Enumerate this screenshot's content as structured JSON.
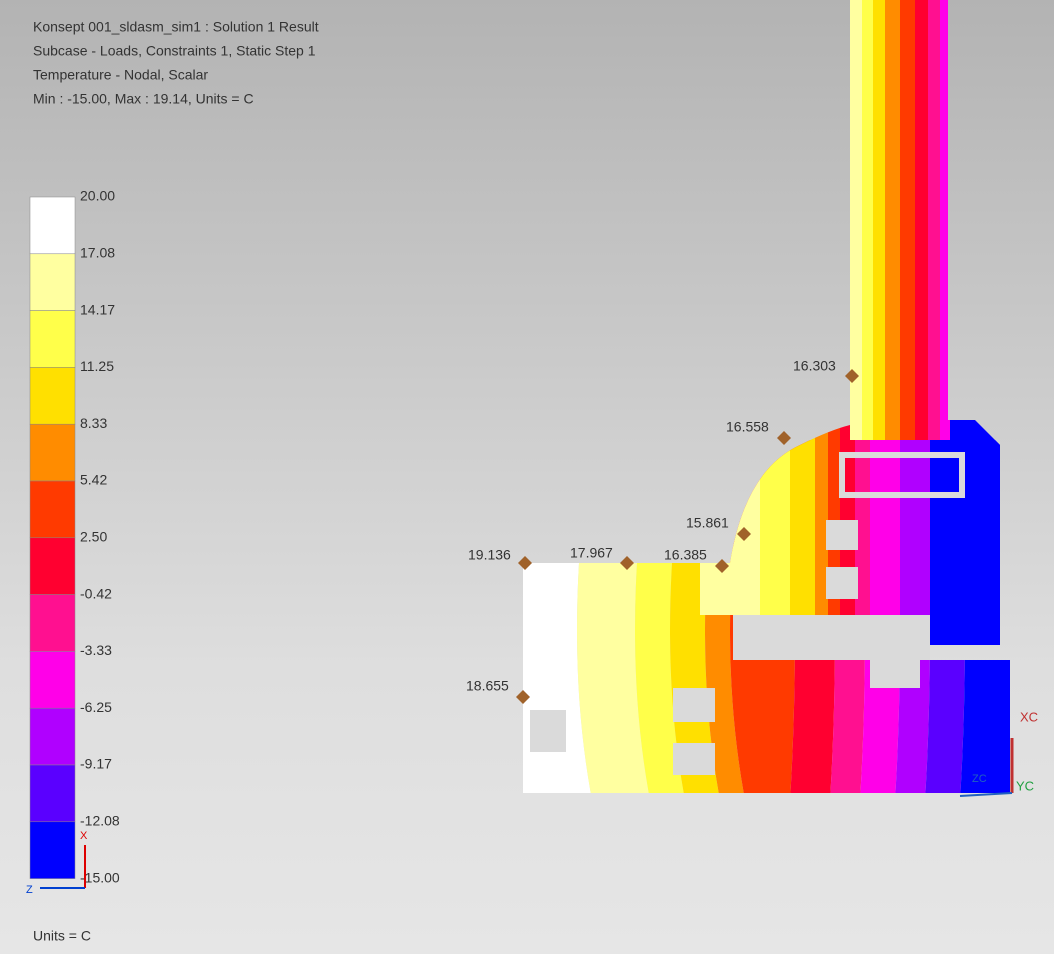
{
  "header": {
    "lines": [
      "Konsept 001_sldasm_sim1 : Solution 1 Result",
      "Subcase - Loads, Constraints 1, Static Step 1",
      "Temperature - Nodal, Scalar",
      "Min : -15.00, Max : 19.14, Units = C"
    ]
  },
  "legend": {
    "labels": [
      "20.00",
      "17.08",
      "14.17",
      "11.25",
      "8.33",
      "5.42",
      "2.50",
      "-0.42",
      "-3.33",
      "-6.25",
      "-9.17",
      "-12.08",
      "-15.00"
    ],
    "colors": [
      "#ffffff",
      "#ffffa0",
      "#ffff4a",
      "#ffe000",
      "#ff8c00",
      "#ff3a00",
      "#ff0030",
      "#ff1090",
      "#ff00e8",
      "#b000ff",
      "#5a00ff",
      "#0000ff"
    ]
  },
  "probes": [
    {
      "label": "16.303"
    },
    {
      "label": "16.558"
    },
    {
      "label": "15.861"
    },
    {
      "label": "16.385"
    },
    {
      "label": "17.967"
    },
    {
      "label": "19.136"
    },
    {
      "label": "18.655"
    }
  ],
  "units": "Units = C",
  "triad": {
    "x": "X",
    "z": "Z"
  },
  "wcs": {
    "xc": "XC",
    "yc": "YC",
    "zc": "ZC"
  }
}
